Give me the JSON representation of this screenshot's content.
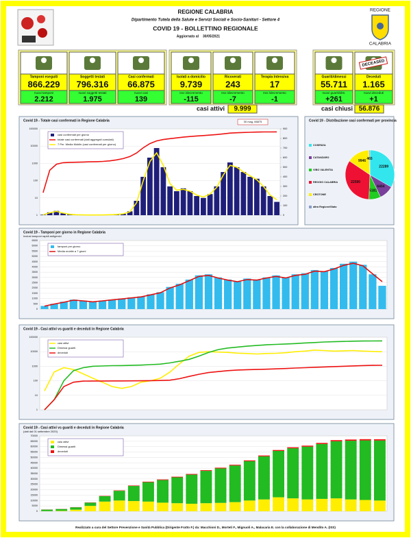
{
  "header": {
    "title": "REGIONE CALABRIA",
    "department": "Dipartimento Tutela della Salute e Servizi Sociali e Socio-Sanitari - Settore 4",
    "bulletin": "COVID 19 - BOLLETTINO REGIONALE",
    "updated_label": "Aggiornato al",
    "date": "30/05/2021",
    "logo_top": "REGIONE",
    "logo_bottom": "CALABRIA"
  },
  "stats": [
    {
      "label": "Tamponi eseguiti",
      "value": "866.229",
      "sublabel": "nuovi tamponi",
      "subvalue": "2.212"
    },
    {
      "label": "Soggetti testati",
      "value": "796.316",
      "sublabel": "nuovi soggetti testati",
      "subvalue": "1.975"
    },
    {
      "label": "Casi confermati",
      "value": "66.875",
      "sublabel": "nuovi casi",
      "subvalue": "139"
    },
    {
      "label": "Isolati a domicilio",
      "value": "9.739",
      "sublabel": "Incr./decremento",
      "subvalue": "-115"
    },
    {
      "label": "Ricoverati",
      "value": "243",
      "sublabel": "Incr./decremento",
      "subvalue": "-7"
    },
    {
      "label": "Terapia Intensiva",
      "value": "17",
      "sublabel": "Incr./decremento",
      "subvalue": "-1"
    },
    {
      "label": "Guariti/dimessi",
      "value": "55.711",
      "sublabel": "nuovi guariti/dim.",
      "subvalue": "+261"
    },
    {
      "label": "Deceduti",
      "value": "1.165",
      "sublabel": "nuovi deceduti",
      "subvalue": "+1"
    }
  ],
  "summary": {
    "active_label": "casi attivi",
    "active": "9.999",
    "closed_label": "casi chiusi",
    "closed": "56.876",
    "stamp": "DECEASED"
  },
  "chart_data": [
    {
      "type": "combo",
      "title": "Covid 19 - Totale casi confermati in Regione Calabria",
      "annotation": "30 mag, 66875",
      "log": true,
      "ylim": [
        1,
        100000
      ],
      "yticks": [
        1,
        10,
        100,
        1000,
        10000,
        100000
      ],
      "y2lim": [
        0,
        900
      ],
      "y2ticks": [
        0,
        100,
        200,
        300,
        400,
        500,
        600,
        700,
        800,
        900
      ],
      "series": [
        {
          "name": "casi confermati per giorno",
          "type": "bar",
          "axis": "y2",
          "color": "#1f1f7a",
          "values": [
            5,
            30,
            45,
            20,
            8,
            5,
            3,
            2,
            2,
            3,
            5,
            8,
            15,
            40,
            150,
            400,
            600,
            700,
            500,
            300,
            250,
            280,
            250,
            200,
            180,
            220,
            300,
            450,
            550,
            500,
            450,
            400,
            380,
            300,
            200,
            139
          ]
        },
        {
          "name": "totale casi confermati (dati aggregati cumulati)",
          "type": "line",
          "color": "#ee1111",
          "values": [
            20,
            400,
            900,
            1100,
            1150,
            1170,
            1200,
            1230,
            1260,
            1300,
            1400,
            1600,
            1900,
            2500,
            4000,
            8000,
            14000,
            20000,
            24000,
            27000,
            30000,
            33000,
            36000,
            38500,
            41000,
            43500,
            47000,
            51500,
            57000,
            59500,
            61500,
            63500,
            65000,
            66000,
            66500,
            66875
          ]
        },
        {
          "name": "7 Per. Media Mobile (casi confermati per giorno)",
          "type": "line",
          "axis": "y2",
          "color": "#ffee00",
          "values": [
            4,
            25,
            40,
            22,
            9,
            5,
            3,
            2,
            2,
            3,
            5,
            8,
            14,
            35,
            130,
            360,
            560,
            650,
            520,
            330,
            260,
            270,
            250,
            210,
            190,
            220,
            290,
            420,
            520,
            500,
            450,
            410,
            370,
            300,
            210,
            160
          ]
        }
      ]
    },
    {
      "type": "pie",
      "title": "Covid 19 - Distribuzione casi confermati per provincia",
      "categories": [
        "COSENZA",
        "CATANZARO",
        "VIBO VALENTIA",
        "REGGIO CALABRIA",
        "CROTONE",
        "altra Regione/Stato"
      ],
      "values": [
        22289,
        6404,
        5181,
        22590,
        9946,
        465
      ],
      "colors": [
        "#33e6ee",
        "#7a3f9a",
        "#22cc22",
        "#ee1133",
        "#ffee00",
        "#8899cc"
      ]
    },
    {
      "type": "combo",
      "title": "Covid 19 - Tamponi per giorno in Regione Calabria",
      "subtitle": "Inclusi tamponi rapidi antigenici",
      "ylim": [
        0,
        6500
      ],
      "yticks": [
        0,
        500,
        1000,
        1500,
        2000,
        2500,
        3000,
        3500,
        4000,
        4500,
        5000,
        5500,
        6000,
        6500
      ],
      "series": [
        {
          "name": "tamponi per giorno",
          "type": "bar",
          "color": "#33bbee",
          "values": [
            300,
            500,
            700,
            900,
            800,
            700,
            800,
            900,
            1000,
            1100,
            1200,
            1400,
            1600,
            2100,
            2400,
            2800,
            3200,
            3300,
            3000,
            2800,
            2600,
            2900,
            2800,
            3000,
            3200,
            3000,
            3300,
            3400,
            3700,
            3600,
            3900,
            4300,
            4500,
            4200,
            3300,
            2212
          ]
        },
        {
          "name": "Media mobile a 7 giorni",
          "type": "line",
          "color": "#dd1111",
          "values": [
            280,
            480,
            650,
            850,
            780,
            690,
            780,
            870,
            960,
            1060,
            1160,
            1350,
            1550,
            2000,
            2300,
            2700,
            3100,
            3200,
            2950,
            2750,
            2600,
            2800,
            2750,
            2950,
            3100,
            2950,
            3200,
            3300,
            3600,
            3550,
            3800,
            4150,
            4350,
            4100,
            3350,
            2600
          ]
        }
      ]
    },
    {
      "type": "line",
      "title": "Covid 19 - Casi attivi vs guariti e deceduti in Regione Calabria",
      "log": true,
      "ylim": [
        1,
        100000
      ],
      "yticks": [
        1,
        10,
        100,
        1000,
        10000,
        100000
      ],
      "series": [
        {
          "name": "casi attivi",
          "type": "line",
          "color": "#ffee00",
          "values": [
            20,
            400,
            800,
            600,
            300,
            150,
            80,
            40,
            30,
            40,
            80,
            100,
            150,
            400,
            1500,
            5000,
            9000,
            10000,
            9500,
            9000,
            8000,
            7500,
            7000,
            7500,
            7800,
            8500,
            10000,
            11000,
            13000,
            12000,
            11000,
            11500,
            12000,
            11000,
            10500,
            9999
          ]
        },
        {
          "name": "Dimessi guariti",
          "type": "line",
          "color": "#22bb22",
          "values": [
            1,
            5,
            100,
            500,
            800,
            1000,
            1050,
            1100,
            1120,
            1150,
            1200,
            1300,
            1400,
            1700,
            2200,
            3000,
            5000,
            9000,
            14000,
            18000,
            21000,
            24000,
            27000,
            30000,
            32000,
            34000,
            36500,
            40000,
            43000,
            46500,
            49000,
            51000,
            53000,
            54500,
            55300,
            55711
          ]
        },
        {
          "name": "deceduti",
          "type": "line",
          "color": "#ee1111",
          "values": [
            1,
            5,
            40,
            80,
            95,
            97,
            97,
            98,
            98,
            99,
            100,
            102,
            104,
            110,
            140,
            200,
            280,
            370,
            430,
            500,
            550,
            580,
            600,
            630,
            660,
            700,
            750,
            800,
            850,
            900,
            950,
            1000,
            1060,
            1110,
            1150,
            1165
          ]
        }
      ]
    },
    {
      "type": "bar",
      "stacked": true,
      "title": "Covid 19 - Casi attivi vs guariti e deceduti in Regione Calabria",
      "subtitle": "(dati dal 01 settembre 2020)",
      "ylim": [
        0,
        70000
      ],
      "yticks": [
        0,
        5000,
        10000,
        15000,
        20000,
        25000,
        30000,
        35000,
        40000,
        45000,
        50000,
        55000,
        60000,
        65000,
        70000
      ],
      "series": [
        {
          "name": "casi attivi",
          "type": "bar",
          "color": "#ffee00",
          "values": [
            150,
            400,
            1500,
            5000,
            9000,
            10000,
            9500,
            9000,
            8000,
            7500,
            7000,
            7500,
            7800,
            8500,
            10000,
            11000,
            13000,
            12000,
            11000,
            11500,
            12000,
            11000,
            10500,
            9999
          ]
        },
        {
          "name": "Dimessi guariti",
          "type": "bar",
          "color": "#22bb22",
          "values": [
            1400,
            1700,
            2200,
            3000,
            5000,
            9000,
            14000,
            18000,
            21000,
            24000,
            27000,
            30000,
            32000,
            34000,
            36500,
            40000,
            43000,
            46500,
            49000,
            51000,
            53000,
            54500,
            55300,
            55711
          ]
        },
        {
          "name": "deceduti",
          "type": "bar",
          "color": "#ee1111",
          "values": [
            104,
            110,
            140,
            200,
            280,
            370,
            430,
            500,
            550,
            580,
            600,
            630,
            660,
            700,
            750,
            800,
            850,
            900,
            950,
            1000,
            1060,
            1110,
            1150,
            1165
          ]
        }
      ]
    }
  ],
  "footer": "Realizzato a cura del Settore Prevenzione e Sanità Pubblica (Dirigente Fratto F.) da: Macchioni D., Morteti F., Mignuoli A., Malacaria E. con la collaborazione di Mendito A. (ISS)"
}
